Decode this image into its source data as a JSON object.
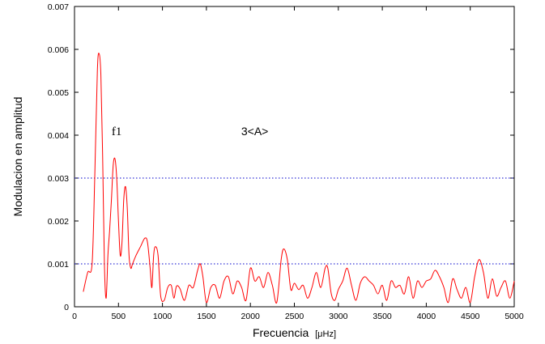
{
  "chart_data": {
    "type": "line",
    "title": "",
    "xlabel": "Frecuencia",
    "xlabel_unit": "[μHz]",
    "ylabel": "Modulacion en amplitud",
    "xlim": [
      0,
      5000
    ],
    "ylim": [
      0,
      0.007
    ],
    "x_ticks": [
      0,
      500,
      1000,
      1500,
      2000,
      2500,
      3000,
      3500,
      4000,
      4500,
      5000
    ],
    "y_ticks": [
      0,
      0.001,
      0.002,
      0.003,
      0.004,
      0.005,
      0.006,
      0.007
    ],
    "x_tick_labels": [
      "0",
      "500",
      "1000",
      "1500",
      "2000",
      "2500",
      "3000",
      "3500",
      "4000",
      "4500",
      "5000"
    ],
    "y_tick_labels": [
      "0",
      "0.001",
      "0.002",
      "0.003",
      "0.004",
      "0.005",
      "0.006",
      "0.007"
    ],
    "grid": false,
    "colors": {
      "spectrum": "#ff0000",
      "reference": "#0000cc"
    },
    "series": [
      {
        "values_x": [
          100,
          150,
          200,
          230,
          260,
          280,
          300,
          320,
          340,
          360,
          380,
          400,
          420,
          440,
          460,
          480,
          500,
          520,
          540,
          560,
          580,
          600,
          620,
          640,
          660,
          700,
          750,
          800,
          830,
          860,
          880,
          900,
          920,
          950,
          980,
          1020,
          1060,
          1100,
          1130,
          1160,
          1200,
          1250,
          1300,
          1350,
          1400,
          1430,
          1460,
          1500,
          1550,
          1600,
          1650,
          1700,
          1750,
          1800,
          1850,
          1900,
          1950,
          2000,
          2050,
          2100,
          2150,
          2200,
          2250,
          2300,
          2350,
          2380,
          2420,
          2460,
          2500,
          2550,
          2600,
          2650,
          2700,
          2750,
          2800,
          2850,
          2880,
          2920,
          2960,
          3000,
          3050,
          3100,
          3150,
          3200,
          3250,
          3300,
          3350,
          3400,
          3450,
          3500,
          3550,
          3600,
          3650,
          3700,
          3750,
          3800,
          3850,
          3900,
          3950,
          4000,
          4050,
          4100,
          4150,
          4200,
          4250,
          4300,
          4350,
          4400,
          4450,
          4500,
          4550,
          4600,
          4650,
          4700,
          4750,
          4800,
          4850,
          4900,
          4950,
          5000
        ],
        "values": [
          0.00035,
          0.0008,
          0.001,
          0.003,
          0.0055,
          0.0059,
          0.0054,
          0.0035,
          0.001,
          0.0002,
          0.0012,
          0.0018,
          0.0025,
          0.0033,
          0.00345,
          0.003,
          0.002,
          0.0012,
          0.0015,
          0.0025,
          0.0028,
          0.0023,
          0.0012,
          0.0009,
          0.001,
          0.0012,
          0.0014,
          0.0016,
          0.0015,
          0.0009,
          0.00045,
          0.0012,
          0.0014,
          0.0012,
          0.00025,
          0.00015,
          0.00045,
          0.0005,
          0.0002,
          0.00048,
          0.00042,
          0.00015,
          0.0005,
          0.00045,
          0.00085,
          0.001,
          0.0007,
          0.0001,
          0.00045,
          0.0005,
          0.0002,
          0.0006,
          0.0007,
          0.0003,
          0.0006,
          0.00045,
          0.00015,
          0.0009,
          0.0006,
          0.0007,
          0.00045,
          0.0008,
          0.0005,
          0.0001,
          0.0011,
          0.00135,
          0.0011,
          0.0004,
          0.00055,
          0.0004,
          0.0005,
          0.0002,
          0.00045,
          0.0008,
          0.00045,
          0.0009,
          0.0009,
          0.0003,
          0.00015,
          0.0004,
          0.0006,
          0.0009,
          0.0005,
          0.00015,
          0.00055,
          0.0007,
          0.0006,
          0.0005,
          0.0003,
          0.0005,
          0.00015,
          0.0006,
          0.00045,
          0.0005,
          0.0003,
          0.0007,
          0.0002,
          0.0006,
          0.00045,
          0.0006,
          0.00065,
          0.00085,
          0.0007,
          0.00045,
          0.0001,
          0.00065,
          0.0004,
          0.0002,
          0.00045,
          0.0001,
          0.0007,
          0.0011,
          0.0008,
          0.0002,
          0.00065,
          0.00025,
          0.00045,
          0.0006,
          0.0002,
          0.0006
        ]
      }
    ],
    "reference_lines": [
      {
        "y": 0.003
      },
      {
        "y": 0.001
      }
    ],
    "annotations": [
      {
        "text": "f1",
        "x": 480,
        "y": 0.004
      },
      {
        "text": "3<A>",
        "x": 2050,
        "y": 0.004
      }
    ]
  }
}
